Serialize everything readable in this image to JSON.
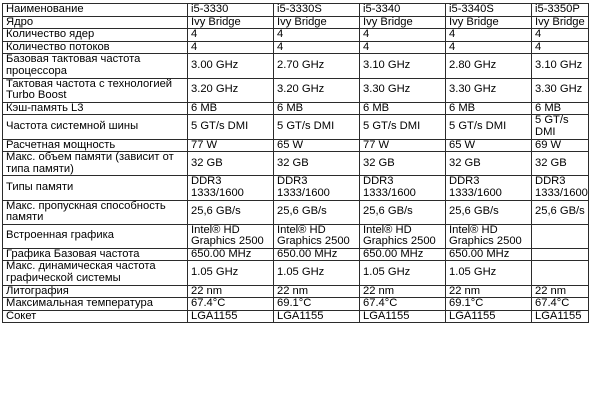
{
  "columns": [
    "Наименование",
    "i5-3330",
    "i5-3330S",
    "i5-3340",
    "i5-3340S",
    "i5-3350P"
  ],
  "rows": [
    {
      "label": "Ядро",
      "values": [
        "Ivy Bridge",
        "Ivy Bridge",
        "Ivy Bridge",
        "Ivy Bridge",
        "Ivy Bridge"
      ]
    },
    {
      "label": "Количество ядер",
      "values": [
        "4",
        "4",
        "4",
        "4",
        "4"
      ]
    },
    {
      "label": "Количество потоков",
      "values": [
        "4",
        "4",
        "4",
        "4",
        "4"
      ]
    },
    {
      "label": "Базовая тактовая частота процессора",
      "values": [
        "3.00 GHz",
        "2.70 GHz",
        "3.10 GHz",
        "2.80 GHz",
        "3.10 GHz"
      ]
    },
    {
      "label": "Тактовая частота с технологией Turbo Boost",
      "values": [
        "3.20 GHz",
        "3.20 GHz",
        "3.30 GHz",
        "3.30 GHz",
        "3.30 GHz"
      ]
    },
    {
      "label": "Кэш-память L3",
      "values": [
        "6 MB",
        "6 MB",
        "6 MB",
        "6 MB",
        "6 MB"
      ]
    },
    {
      "label": "Частота системной шины",
      "values": [
        "5 GT/s DMI",
        "5 GT/s DMI",
        "5 GT/s DMI",
        "5 GT/s DMI",
        "5 GT/s DMI"
      ]
    },
    {
      "label": "Расчетная мощность",
      "values": [
        "77 W",
        "65 W",
        "77 W",
        "65 W",
        "69 W"
      ]
    },
    {
      "label": "Макс. объем памяти (зависит от типа памяти)",
      "values": [
        "32 GB",
        "32 GB",
        "32 GB",
        "32 GB",
        "32 GB"
      ]
    },
    {
      "label": "Типы памяти",
      "values": [
        "DDR3 1333/1600",
        "DDR3 1333/1600",
        "DDR3 1333/1600",
        "DDR3 1333/1600",
        "DDR3 1333/1600"
      ]
    },
    {
      "label": "Макс. пропускная способность памяти",
      "values": [
        "25,6 GB/s",
        "25,6 GB/s",
        "25,6 GB/s",
        "25,6 GB/s",
        "25,6 GB/s"
      ]
    },
    {
      "label": "Встроенная графика",
      "values": [
        "Intel® HD Graphics 2500",
        "Intel® HD Graphics 2500",
        "Intel® HD Graphics 2500",
        "Intel® HD Graphics 2500",
        ""
      ]
    },
    {
      "label": "Графика Базовая частота",
      "values": [
        "650.00 MHz",
        "650.00 MHz",
        "650.00 MHz",
        "650.00 MHz",
        ""
      ]
    },
    {
      "label": "Макс. динамическая частота графической системы",
      "values": [
        "1.05 GHz",
        "1.05 GHz",
        "1.05 GHz",
        "1.05 GHz",
        ""
      ]
    },
    {
      "label": "Литография",
      "values": [
        "22 nm",
        "22 nm",
        "22 nm",
        "22 nm",
        "22 nm"
      ]
    },
    {
      "label": "Максимальная температура",
      "values": [
        "67.4°C",
        "69.1°C",
        "67.4°C",
        "69.1°C",
        "67.4°C"
      ]
    },
    {
      "label": "Сокет",
      "values": [
        "LGA1155",
        "LGA1155",
        "LGA1155",
        "LGA1155",
        "LGA1155"
      ]
    }
  ]
}
